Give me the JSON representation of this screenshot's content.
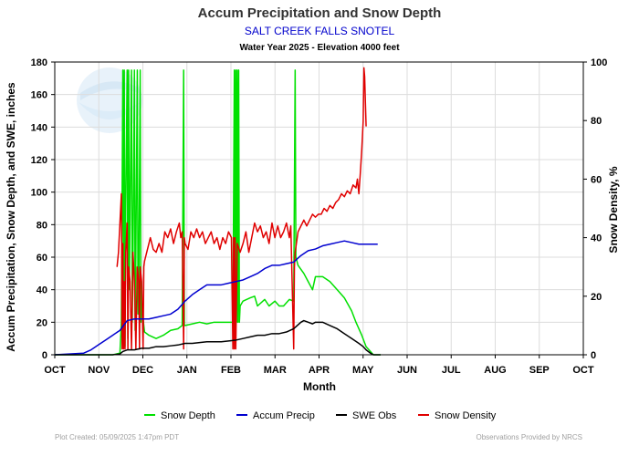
{
  "chart_data": {
    "type": "line",
    "title": "Accum Precipitation and Snow Depth",
    "subtitle": "SALT CREEK FALLS SNOTEL",
    "subtitle2": "Water Year 2025 -  Elevation 4000 feet",
    "xlabel": "Month",
    "ylabel": "Accum Precipitation, Snow Depth, and SWE, inches",
    "y2label": "Snow Density, %",
    "months": [
      "OCT",
      "NOV",
      "DEC",
      "JAN",
      "FEB",
      "MAR",
      "APR",
      "MAY",
      "JUN",
      "JUL",
      "AUG",
      "SEP",
      "OCT"
    ],
    "xlim": [
      0,
      365
    ],
    "ylim": [
      0,
      180
    ],
    "yticks": [
      0,
      20,
      40,
      60,
      80,
      100,
      120,
      140,
      160,
      180
    ],
    "y2lim": [
      0,
      100
    ],
    "y2ticks": [
      0,
      20,
      40,
      60,
      80,
      100
    ],
    "grid": true,
    "legend": "bottom",
    "footer_left": "Plot Created: 05/09/2025 1:47pm PDT",
    "footer_right": "Observations Provided by NRCS",
    "series": [
      {
        "name": "Snow Depth",
        "color": "#00e000",
        "axis": "left",
        "points": [
          [
            0,
            0
          ],
          [
            30,
            0
          ],
          [
            40,
            0
          ],
          [
            45,
            1
          ],
          [
            46,
            20
          ],
          [
            47,
            175
          ],
          [
            47.5,
            30
          ],
          [
            48,
            175
          ],
          [
            48.5,
            5
          ],
          [
            49,
            90
          ],
          [
            50,
            175
          ],
          [
            50.5,
            10
          ],
          [
            51,
            175
          ],
          [
            51.5,
            40
          ],
          [
            52,
            85
          ],
          [
            53,
            175
          ],
          [
            53.5,
            20
          ],
          [
            54,
            60
          ],
          [
            55,
            175
          ],
          [
            55.5,
            15
          ],
          [
            56,
            60
          ],
          [
            57,
            175
          ],
          [
            57.5,
            25
          ],
          [
            58,
            35
          ],
          [
            59,
            175
          ],
          [
            59.5,
            20
          ],
          [
            60,
            30
          ],
          [
            62,
            14
          ],
          [
            65,
            12
          ],
          [
            70,
            10
          ],
          [
            75,
            12
          ],
          [
            80,
            15
          ],
          [
            85,
            16
          ],
          [
            88,
            18
          ],
          [
            89,
            175
          ],
          [
            89.5,
            18
          ],
          [
            90,
            18
          ],
          [
            95,
            19
          ],
          [
            100,
            20
          ],
          [
            105,
            19
          ],
          [
            110,
            20
          ],
          [
            115,
            20
          ],
          [
            120,
            20
          ],
          [
            123,
            20
          ],
          [
            124,
            175
          ],
          [
            124.5,
            20
          ],
          [
            125,
            175
          ],
          [
            125.5,
            20
          ],
          [
            126,
            175
          ],
          [
            126.5,
            20
          ],
          [
            127,
            175
          ],
          [
            127.5,
            20
          ],
          [
            128,
            30
          ],
          [
            130,
            33
          ],
          [
            135,
            35
          ],
          [
            138,
            36
          ],
          [
            140,
            30
          ],
          [
            145,
            34
          ],
          [
            148,
            30
          ],
          [
            152,
            33
          ],
          [
            155,
            30
          ],
          [
            158,
            30
          ],
          [
            162,
            34
          ],
          [
            165,
            33
          ],
          [
            166,
            175
          ],
          [
            166.5,
            60
          ],
          [
            168,
            55
          ],
          [
            172,
            50
          ],
          [
            175,
            45
          ],
          [
            178,
            40
          ],
          [
            180,
            48
          ],
          [
            185,
            48
          ],
          [
            190,
            45
          ],
          [
            195,
            40
          ],
          [
            200,
            35
          ],
          [
            205,
            27
          ],
          [
            208,
            20
          ],
          [
            212,
            12
          ],
          [
            215,
            5
          ],
          [
            218,
            2
          ],
          [
            220,
            0
          ],
          [
            225,
            0
          ]
        ]
      },
      {
        "name": "Accum Precip",
        "color": "#0000d0",
        "axis": "left",
        "points": [
          [
            0,
            0
          ],
          [
            10,
            0.5
          ],
          [
            20,
            1
          ],
          [
            25,
            3
          ],
          [
            30,
            6
          ],
          [
            35,
            9
          ],
          [
            40,
            12
          ],
          [
            45,
            15
          ],
          [
            50,
            21
          ],
          [
            55,
            22
          ],
          [
            60,
            22
          ],
          [
            65,
            22
          ],
          [
            70,
            23
          ],
          [
            75,
            24
          ],
          [
            80,
            25
          ],
          [
            85,
            28
          ],
          [
            90,
            33
          ],
          [
            95,
            37
          ],
          [
            100,
            40
          ],
          [
            105,
            43
          ],
          [
            110,
            43
          ],
          [
            115,
            43
          ],
          [
            120,
            44
          ],
          [
            125,
            45
          ],
          [
            130,
            46
          ],
          [
            135,
            48
          ],
          [
            140,
            50
          ],
          [
            145,
            53
          ],
          [
            150,
            55
          ],
          [
            155,
            55
          ],
          [
            160,
            56
          ],
          [
            165,
            57
          ],
          [
            170,
            61
          ],
          [
            175,
            64
          ],
          [
            180,
            65
          ],
          [
            185,
            67
          ],
          [
            190,
            68
          ],
          [
            195,
            69
          ],
          [
            200,
            70
          ],
          [
            205,
            69
          ],
          [
            210,
            68
          ],
          [
            215,
            68
          ],
          [
            220,
            68
          ],
          [
            223,
            68
          ]
        ]
      },
      {
        "name": "SWE Obs",
        "color": "#000000",
        "axis": "left",
        "points": [
          [
            0,
            0
          ],
          [
            30,
            0
          ],
          [
            40,
            0
          ],
          [
            45,
            0.5
          ],
          [
            47,
            2
          ],
          [
            50,
            3
          ],
          [
            55,
            3
          ],
          [
            60,
            4
          ],
          [
            65,
            4
          ],
          [
            70,
            5
          ],
          [
            75,
            5
          ],
          [
            80,
            5.5
          ],
          [
            85,
            6
          ],
          [
            90,
            7
          ],
          [
            95,
            7
          ],
          [
            100,
            7.5
          ],
          [
            105,
            8
          ],
          [
            110,
            8
          ],
          [
            115,
            8
          ],
          [
            120,
            8.5
          ],
          [
            125,
            9
          ],
          [
            130,
            10
          ],
          [
            135,
            11
          ],
          [
            140,
            12
          ],
          [
            145,
            12
          ],
          [
            150,
            13
          ],
          [
            155,
            13
          ],
          [
            160,
            14
          ],
          [
            165,
            16
          ],
          [
            170,
            20
          ],
          [
            172,
            21
          ],
          [
            175,
            20
          ],
          [
            178,
            19
          ],
          [
            180,
            20
          ],
          [
            185,
            20
          ],
          [
            190,
            18
          ],
          [
            195,
            16
          ],
          [
            200,
            13
          ],
          [
            205,
            10
          ],
          [
            210,
            7
          ],
          [
            213,
            5
          ],
          [
            215,
            3
          ],
          [
            218,
            1
          ],
          [
            220,
            0
          ],
          [
            225,
            0
          ]
        ]
      },
      {
        "name": "Snow Density",
        "color": "#e00000",
        "axis": "right",
        "points": [
          [
            43,
            30
          ],
          [
            44,
            35
          ],
          [
            45,
            45
          ],
          [
            46,
            55
          ],
          [
            46.5,
            2
          ],
          [
            47,
            38
          ],
          [
            47.5,
            2
          ],
          [
            48,
            25
          ],
          [
            48.5,
            2
          ],
          [
            49,
            35
          ],
          [
            50,
            45
          ],
          [
            50.5,
            2
          ],
          [
            51,
            30
          ],
          [
            52,
            25
          ],
          [
            53,
            2
          ],
          [
            54,
            35
          ],
          [
            55,
            25
          ],
          [
            56,
            2
          ],
          [
            57,
            30
          ],
          [
            58,
            25
          ],
          [
            58.5,
            2
          ],
          [
            59,
            30
          ],
          [
            60,
            25
          ],
          [
            61,
            2
          ],
          [
            61.5,
            30
          ],
          [
            62,
            32
          ],
          [
            65,
            38
          ],
          [
            66,
            40
          ],
          [
            68,
            36
          ],
          [
            70,
            35
          ],
          [
            72,
            38
          ],
          [
            74,
            35
          ],
          [
            76,
            42
          ],
          [
            78,
            40
          ],
          [
            80,
            43
          ],
          [
            82,
            38
          ],
          [
            84,
            42
          ],
          [
            86,
            45
          ],
          [
            87,
            40
          ],
          [
            88,
            42
          ],
          [
            89,
            2
          ],
          [
            89.5,
            40
          ],
          [
            90,
            38
          ],
          [
            92,
            36
          ],
          [
            94,
            42
          ],
          [
            96,
            40
          ],
          [
            98,
            43
          ],
          [
            100,
            40
          ],
          [
            102,
            42
          ],
          [
            104,
            38
          ],
          [
            106,
            40
          ],
          [
            108,
            42
          ],
          [
            110,
            38
          ],
          [
            112,
            40
          ],
          [
            114,
            36
          ],
          [
            116,
            40
          ],
          [
            118,
            38
          ],
          [
            120,
            42
          ],
          [
            122,
            40
          ],
          [
            123,
            2
          ],
          [
            123.5,
            40
          ],
          [
            124,
            2
          ],
          [
            124.5,
            40
          ],
          [
            125,
            2
          ],
          [
            126,
            38
          ],
          [
            128,
            35
          ],
          [
            130,
            38
          ],
          [
            132,
            42
          ],
          [
            134,
            35
          ],
          [
            136,
            40
          ],
          [
            138,
            45
          ],
          [
            140,
            42
          ],
          [
            142,
            44
          ],
          [
            144,
            40
          ],
          [
            146,
            42
          ],
          [
            148,
            38
          ],
          [
            150,
            45
          ],
          [
            152,
            40
          ],
          [
            154,
            44
          ],
          [
            156,
            40
          ],
          [
            158,
            42
          ],
          [
            160,
            45
          ],
          [
            162,
            40
          ],
          [
            163,
            44
          ],
          [
            165,
            2
          ],
          [
            165.5,
            30
          ],
          [
            166,
            35
          ],
          [
            168,
            42
          ],
          [
            170,
            44
          ],
          [
            172,
            46
          ],
          [
            174,
            44
          ],
          [
            176,
            46
          ],
          [
            178,
            48
          ],
          [
            180,
            47
          ],
          [
            182,
            48
          ],
          [
            184,
            48
          ],
          [
            186,
            50
          ],
          [
            188,
            49
          ],
          [
            190,
            51
          ],
          [
            192,
            50
          ],
          [
            194,
            52
          ],
          [
            196,
            53
          ],
          [
            198,
            55
          ],
          [
            200,
            54
          ],
          [
            202,
            56
          ],
          [
            204,
            55
          ],
          [
            206,
            58
          ],
          [
            208,
            57
          ],
          [
            209,
            60
          ],
          [
            210,
            55
          ],
          [
            211,
            62
          ],
          [
            212,
            70
          ],
          [
            213,
            80
          ],
          [
            213.5,
            98
          ],
          [
            214,
            95
          ],
          [
            215,
            78
          ]
        ]
      }
    ]
  }
}
